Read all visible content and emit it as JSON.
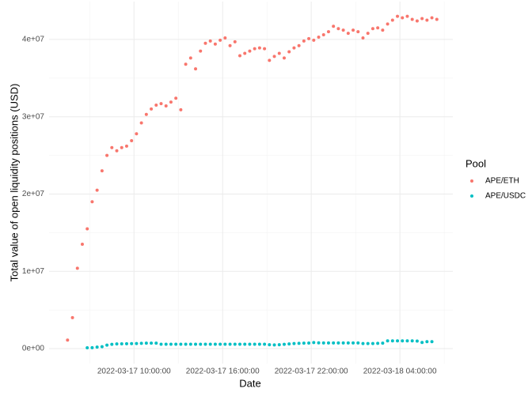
{
  "chart_data": {
    "type": "scatter",
    "x_label": "Date",
    "y_label": "Total value of open liquidity positions (USD)",
    "legend_title": "Pool",
    "legend": "right",
    "grid": true,
    "x": [
      "2022-03-17 05:30:00",
      "2022-03-17 05:50:00",
      "2022-03-17 06:10:00",
      "2022-03-17 06:30:00",
      "2022-03-17 06:50:00",
      "2022-03-17 07:10:00",
      "2022-03-17 07:30:00",
      "2022-03-17 07:50:00",
      "2022-03-17 08:10:00",
      "2022-03-17 08:30:00",
      "2022-03-17 08:50:00",
      "2022-03-17 09:10:00",
      "2022-03-17 09:30:00",
      "2022-03-17 09:50:00",
      "2022-03-17 10:10:00",
      "2022-03-17 10:30:00",
      "2022-03-17 10:50:00",
      "2022-03-17 11:10:00",
      "2022-03-17 11:30:00",
      "2022-03-17 11:50:00",
      "2022-03-17 12:10:00",
      "2022-03-17 12:30:00",
      "2022-03-17 12:50:00",
      "2022-03-17 13:10:00",
      "2022-03-17 13:30:00",
      "2022-03-17 13:50:00",
      "2022-03-17 14:10:00",
      "2022-03-17 14:30:00",
      "2022-03-17 14:50:00",
      "2022-03-17 15:10:00",
      "2022-03-17 15:30:00",
      "2022-03-17 15:50:00",
      "2022-03-17 16:10:00",
      "2022-03-17 16:30:00",
      "2022-03-17 16:50:00",
      "2022-03-17 17:10:00",
      "2022-03-17 17:30:00",
      "2022-03-17 17:50:00",
      "2022-03-17 18:10:00",
      "2022-03-17 18:30:00",
      "2022-03-17 18:50:00",
      "2022-03-17 19:10:00",
      "2022-03-17 19:30:00",
      "2022-03-17 19:50:00",
      "2022-03-17 20:10:00",
      "2022-03-17 20:30:00",
      "2022-03-17 20:50:00",
      "2022-03-17 21:10:00",
      "2022-03-17 21:30:00",
      "2022-03-17 21:50:00",
      "2022-03-17 22:10:00",
      "2022-03-17 22:30:00",
      "2022-03-17 22:50:00",
      "2022-03-17 23:10:00",
      "2022-03-17 23:30:00",
      "2022-03-17 23:50:00",
      "2022-03-18 00:10:00",
      "2022-03-18 00:30:00",
      "2022-03-18 00:50:00",
      "2022-03-18 01:10:00",
      "2022-03-18 01:30:00",
      "2022-03-18 01:50:00",
      "2022-03-18 02:10:00",
      "2022-03-18 02:30:00",
      "2022-03-18 02:50:00",
      "2022-03-18 03:10:00",
      "2022-03-18 03:30:00",
      "2022-03-18 03:50:00",
      "2022-03-18 04:10:00",
      "2022-03-18 04:30:00",
      "2022-03-18 04:50:00",
      "2022-03-18 05:10:00",
      "2022-03-18 05:30:00",
      "2022-03-18 05:50:00",
      "2022-03-18 06:10:00",
      "2022-03-18 06:30:00"
    ],
    "series": [
      {
        "name": "APE/ETH",
        "color": "#F8766D",
        "values": [
          1100000,
          4000000,
          10400000,
          13500000,
          15500000,
          19000000,
          20500000,
          23000000,
          25000000,
          26000000,
          25600000,
          26000000,
          26200000,
          26900000,
          27800000,
          29200000,
          30300000,
          31000000,
          31500000,
          31700000,
          31400000,
          31900000,
          32400000,
          30900000,
          36800000,
          37600000,
          36200000,
          38500000,
          39500000,
          39800000,
          39400000,
          39900000,
          40200000,
          39200000,
          39700000,
          37900000,
          38200000,
          38500000,
          38800000,
          38900000,
          38800000,
          37300000,
          37800000,
          38200000,
          37600000,
          38400000,
          38900000,
          39200000,
          39800000,
          40100000,
          39900000,
          40300000,
          40600000,
          41000000,
          41700000,
          41400000,
          41200000,
          40800000,
          41200000,
          41000000,
          40200000,
          40800000,
          41400000,
          41500000,
          41200000,
          42000000,
          42500000,
          43000000,
          42800000,
          43000000,
          42600000,
          42400000,
          42700000,
          42500000,
          42800000,
          42600000
        ]
      },
      {
        "name": "APE/USDC",
        "color": "#00BFC4",
        "values": [
          null,
          null,
          null,
          null,
          100000,
          120000,
          200000,
          250000,
          450000,
          550000,
          600000,
          620000,
          630000,
          640000,
          650000,
          680000,
          700000,
          700000,
          700000,
          560000,
          560000,
          560000,
          560000,
          560000,
          560000,
          560000,
          560000,
          560000,
          560000,
          560000,
          560000,
          560000,
          560000,
          560000,
          560000,
          560000,
          560000,
          560000,
          560000,
          560000,
          560000,
          500000,
          480000,
          500000,
          550000,
          600000,
          650000,
          680000,
          700000,
          720000,
          780000,
          740000,
          730000,
          730000,
          730000,
          730000,
          730000,
          730000,
          730000,
          730000,
          650000,
          650000,
          650000,
          680000,
          700000,
          1000000,
          1000000,
          1000000,
          1000000,
          1000000,
          1000000,
          980000,
          800000,
          900000,
          900000,
          null
        ]
      }
    ],
    "xlim": [
      "2022-03-17 04:15:00",
      "2022-03-18 07:35:00"
    ],
    "xticks": [
      "2022-03-17 10:00:00",
      "2022-03-17 16:00:00",
      "2022-03-17 22:00:00",
      "2022-03-18 04:00:00"
    ],
    "ylim": [
      -1940000,
      44900000
    ],
    "yticks": [
      {
        "value": 0,
        "label": "0e+00"
      },
      {
        "value": 10000000,
        "label": "1e+07"
      },
      {
        "value": 20000000,
        "label": "2e+07"
      },
      {
        "value": 30000000,
        "label": "3e+07"
      },
      {
        "value": 40000000,
        "label": "4e+07"
      }
    ]
  }
}
